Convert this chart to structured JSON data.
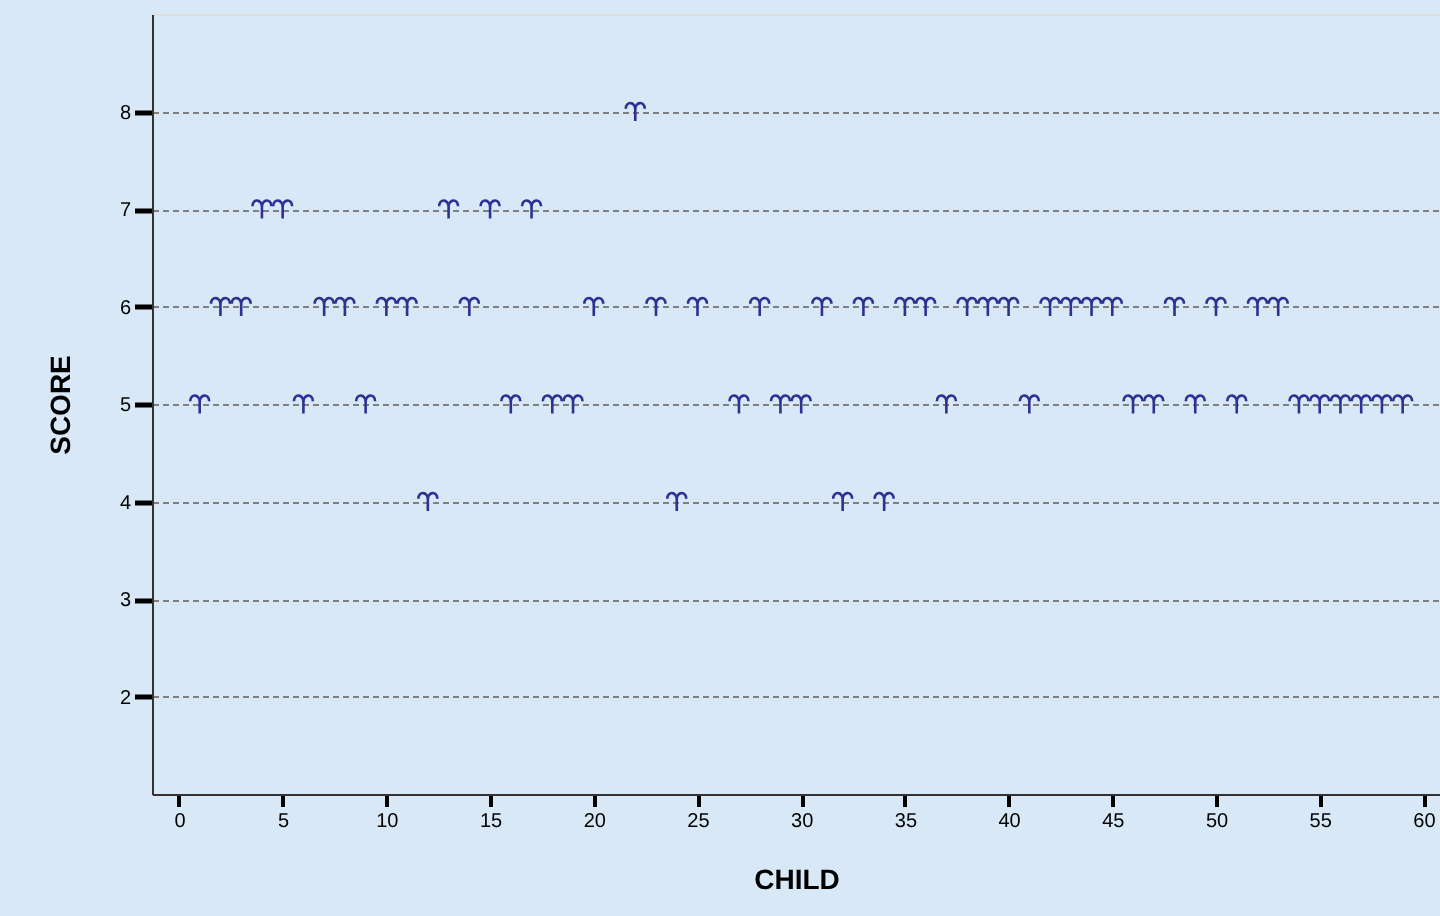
{
  "chart_data": {
    "type": "scatter",
    "xlabel": "CHILD",
    "ylabel": "SCORE",
    "x": [
      1,
      2,
      3,
      4,
      5,
      6,
      7,
      8,
      9,
      10,
      11,
      12,
      13,
      14,
      15,
      16,
      17,
      18,
      19,
      20,
      22,
      23,
      24,
      25,
      27,
      28,
      29,
      30,
      31,
      32,
      33,
      34,
      35,
      36,
      37,
      38,
      39,
      40,
      41,
      42,
      43,
      44,
      45,
      46,
      47,
      48,
      49,
      50,
      51,
      52,
      53,
      54,
      55,
      56,
      57,
      58,
      59
    ],
    "values": [
      5,
      6,
      6,
      7,
      7,
      5,
      6,
      6,
      5,
      6,
      6,
      4,
      7,
      6,
      7,
      5,
      7,
      5,
      5,
      6,
      8,
      6,
      4,
      6,
      5,
      6,
      5,
      5,
      6,
      4,
      6,
      4,
      6,
      6,
      5,
      6,
      6,
      6,
      5,
      6,
      6,
      6,
      6,
      5,
      5,
      6,
      5,
      6,
      5,
      6,
      6,
      5,
      5,
      5,
      5,
      5,
      5
    ],
    "color": "#2e3192",
    "xlim": [
      -1.3,
      60.8
    ],
    "xticks": [
      0,
      5,
      10,
      15,
      20,
      25,
      30,
      35,
      40,
      45,
      50,
      55,
      60
    ],
    "ylim": [
      1,
      9
    ],
    "yticks": [
      2,
      3,
      4,
      5,
      6,
      7,
      8
    ],
    "grid": "y"
  }
}
